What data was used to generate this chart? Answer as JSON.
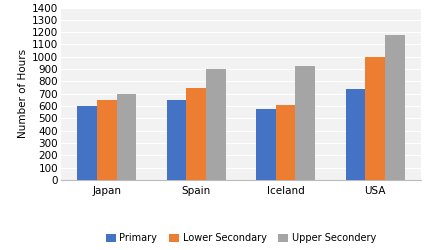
{
  "categories": [
    "Japan",
    "Spain",
    "Iceland",
    "USA"
  ],
  "series": {
    "Primary": [
      600,
      650,
      575,
      740
    ],
    "Lower Secondary": [
      650,
      750,
      610,
      1000
    ],
    "Upper Secondery": [
      700,
      900,
      925,
      1175
    ]
  },
  "series_colors": {
    "Primary": "#4472C4",
    "Lower Secondary": "#ED7D31",
    "Upper Secondery": "#A5A5A5"
  },
  "ylabel": "Number of Hours",
  "ylim": [
    0,
    1400
  ],
  "yticks": [
    0,
    100,
    200,
    300,
    400,
    500,
    600,
    700,
    800,
    900,
    1000,
    1100,
    1200,
    1300,
    1400
  ],
  "legend_labels": [
    "Primary",
    "Lower Secondary",
    "Upper Secondery"
  ],
  "plot_bg_color": "#F2F2F2",
  "fig_bg_color": "#FFFFFF",
  "grid_color": "#FFFFFF",
  "bar_width": 0.22
}
